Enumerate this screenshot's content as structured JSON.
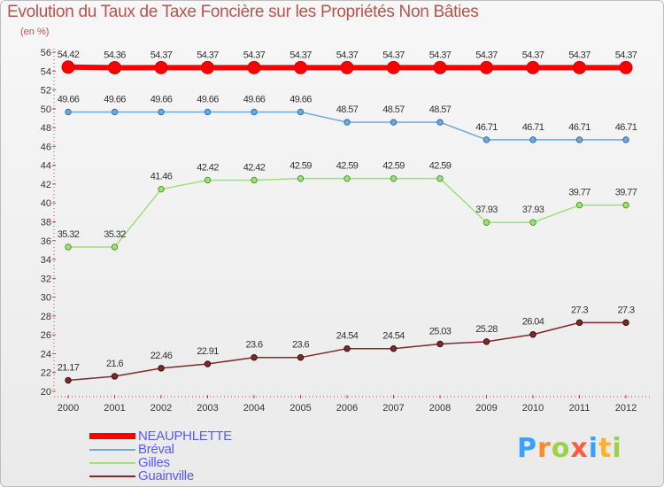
{
  "chart_data": {
    "type": "line",
    "title": "Evolution du Taux de Taxe Foncière sur les Propriétés Non Bâties",
    "subtitle": "(en %)",
    "xlabel": "",
    "ylabel": "(en %)",
    "ylim": [
      20,
      56
    ],
    "yticks": [
      20,
      22,
      24,
      26,
      28,
      30,
      32,
      34,
      36,
      38,
      40,
      42,
      44,
      46,
      48,
      50,
      52,
      54,
      56
    ],
    "categories": [
      "2000",
      "2001",
      "2002",
      "2003",
      "2004",
      "2005",
      "2006",
      "2007",
      "2008",
      "2009",
      "2010",
      "2011",
      "2012"
    ],
    "series": [
      {
        "name": "NEAUPHLETTE",
        "color": "#ff0000",
        "values": [
          54.42,
          54.36,
          54.37,
          54.37,
          54.37,
          54.37,
          54.37,
          54.37,
          54.37,
          54.37,
          54.37,
          54.37,
          54.37
        ],
        "labels": [
          "54.42",
          "54.36",
          "54.37",
          "54.37",
          "54.37",
          "54.37",
          "54.37",
          "54.37",
          "54.37",
          "54.37",
          "54.37",
          "54.37",
          "54.37"
        ]
      },
      {
        "name": "Bréval",
        "color": "#6fa8dc",
        "values": [
          49.66,
          49.66,
          49.66,
          49.66,
          49.66,
          49.66,
          48.57,
          48.57,
          48.57,
          46.71,
          46.71,
          46.71,
          46.71
        ],
        "labels": [
          "49.66",
          "49.66",
          "49.66",
          "49.66",
          "49.66",
          "49.66",
          "48.57",
          "48.57",
          "48.57",
          "46.71",
          "46.71",
          "46.71",
          "46.71"
        ]
      },
      {
        "name": "Gilles",
        "color": "#9ee07a",
        "values": [
          35.32,
          35.32,
          41.46,
          42.42,
          42.42,
          42.59,
          42.59,
          42.59,
          42.59,
          37.93,
          37.93,
          39.77,
          39.77
        ],
        "labels": [
          "35.32",
          "35.32",
          "41.46",
          "42.42",
          "42.42",
          "42.59",
          "42.59",
          "42.59",
          "42.59",
          "37.93",
          "37.93",
          "39.77",
          "39.77"
        ]
      },
      {
        "name": "Guainville",
        "color": "#7f2a2a",
        "values": [
          21.17,
          21.6,
          22.46,
          22.91,
          23.6,
          23.6,
          24.54,
          24.54,
          25.03,
          25.28,
          26.04,
          27.3,
          27.3
        ],
        "labels": [
          "21.17",
          "21.6",
          "22.46",
          "22.91",
          "23.6",
          "23.6",
          "24.54",
          "24.54",
          "25.03",
          "25.28",
          "26.04",
          "27.3",
          "27.3"
        ]
      }
    ],
    "legend_position": "bottom-left",
    "grid": false
  },
  "brand": {
    "letters": [
      "P",
      "r",
      "o",
      "x",
      "i",
      "t",
      "i"
    ],
    "colors": [
      "#3aa0ff",
      "#ff8a2a",
      "#9ad24a",
      "#ff5a3c",
      "#3aa0ff",
      "#ffb02a",
      "#9ad24a"
    ]
  }
}
